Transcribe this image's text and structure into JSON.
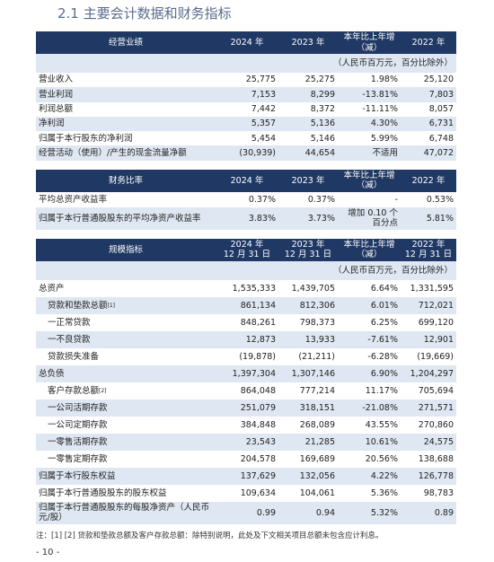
{
  "title": "2.1 主要会计数据和财务指标",
  "sections": [
    {
      "header": [
        "经营业绩",
        "2024 年",
        "2023 年",
        "本年比上年增\n（减）",
        "2022 年"
      ],
      "unit": "（人民币百万元，百分比除外）",
      "rows": [
        {
          "label": "营业收入",
          "values": [
            "25,775",
            "25,275",
            "1.98%",
            "25,120"
          ]
        },
        {
          "label": "营业利润",
          "values": [
            "7,153",
            "8,299",
            "-13.81%",
            "7,803"
          ]
        },
        {
          "label": "利润总额",
          "values": [
            "7,442",
            "8,372",
            "-11.11%",
            "8,057"
          ]
        },
        {
          "label": "净利润",
          "values": [
            "5,357",
            "5,136",
            "4.30%",
            "6,731"
          ]
        },
        {
          "label": "归属于本行股东的净利润",
          "values": [
            "5,454",
            "5,146",
            "5.99%",
            "6,748"
          ]
        },
        {
          "label": "经营活动（使用）/产生的现金流量净额",
          "values": [
            "(30,939)",
            "44,654",
            "不适用",
            "47,072"
          ]
        }
      ]
    },
    {
      "header": [
        "财务比率",
        "2024 年",
        "2023 年",
        "本年比上年增\n（减）",
        "2022 年"
      ],
      "rows": [
        {
          "label": "平均总资产收益率",
          "values": [
            "0.37%",
            "0.37%",
            "-",
            "0.53%"
          ]
        },
        {
          "label": "归属于本行普通股股东的平均净资产收益率",
          "values": [
            "3.83%",
            "3.73%",
            "增加 0.10 个\n百分点",
            "5.81%"
          ]
        }
      ]
    },
    {
      "header": [
        "规模指标",
        "2024 年\n12 月 31 日",
        "2023 年\n12 月 31 日",
        "本年比上年增\n（减）",
        "2022 年\n12 月 31 日"
      ],
      "unit": "（人民币百万元，百分比除外）",
      "rows": [
        {
          "label": "总资产",
          "values": [
            "1,535,333",
            "1,439,705",
            "6.64%",
            "1,331,595"
          ]
        },
        {
          "label": "贷款和垫款总额",
          "note_ref": "[1]",
          "values": [
            "861,134",
            "812,306",
            "6.01%",
            "712,021"
          ]
        },
        {
          "label": "一正常贷款",
          "values": [
            "848,261",
            "798,373",
            "6.25%",
            "699,120"
          ]
        },
        {
          "label": "一不良贷款",
          "values": [
            "12,873",
            "13,933",
            "-7.61%",
            "12,901"
          ]
        },
        {
          "label": "贷款损失准备",
          "values": [
            "(19,878)",
            "(21,211)",
            "-6.28%",
            "(19,669)"
          ]
        },
        {
          "label": "总负债",
          "values": [
            "1,397,304",
            "1,307,146",
            "6.90%",
            "1,204,297"
          ]
        },
        {
          "label": "客户存款总额",
          "note_ref": "[2]",
          "values": [
            "864,048",
            "777,214",
            "11.17%",
            "705,694"
          ]
        },
        {
          "label": "一公司活期存款",
          "values": [
            "251,079",
            "318,151",
            "-21.08%",
            "271,571"
          ]
        },
        {
          "label": "一公司定期存款",
          "values": [
            "384,848",
            "268,089",
            "43.55%",
            "270,860"
          ]
        },
        {
          "label": "一零售活期存款",
          "values": [
            "23,543",
            "21,285",
            "10.61%",
            "24,575"
          ]
        },
        {
          "label": "一零售定期存款",
          "values": [
            "204,578",
            "169,689",
            "20.56%",
            "138,688"
          ]
        },
        {
          "label": "归属于本行股东权益",
          "values": [
            "137,629",
            "132,056",
            "4.22%",
            "126,778"
          ]
        },
        {
          "label": "归属于本行普通股股东的股东权益",
          "values": [
            "109,634",
            "104,061",
            "5.36%",
            "98,783"
          ]
        },
        {
          "label": "归属于本行普通股股东的每股净资产（人民币元/股）",
          "values": [
            "0.99",
            "0.94",
            "5.32%",
            "0.89"
          ]
        }
      ]
    }
  ],
  "note": "注：[1] [2] 贷款和垫款总额及客户存款总额：除特别说明，此处及下文相关项目总额未包含应计利息。",
  "page_number": "- 10 -"
}
